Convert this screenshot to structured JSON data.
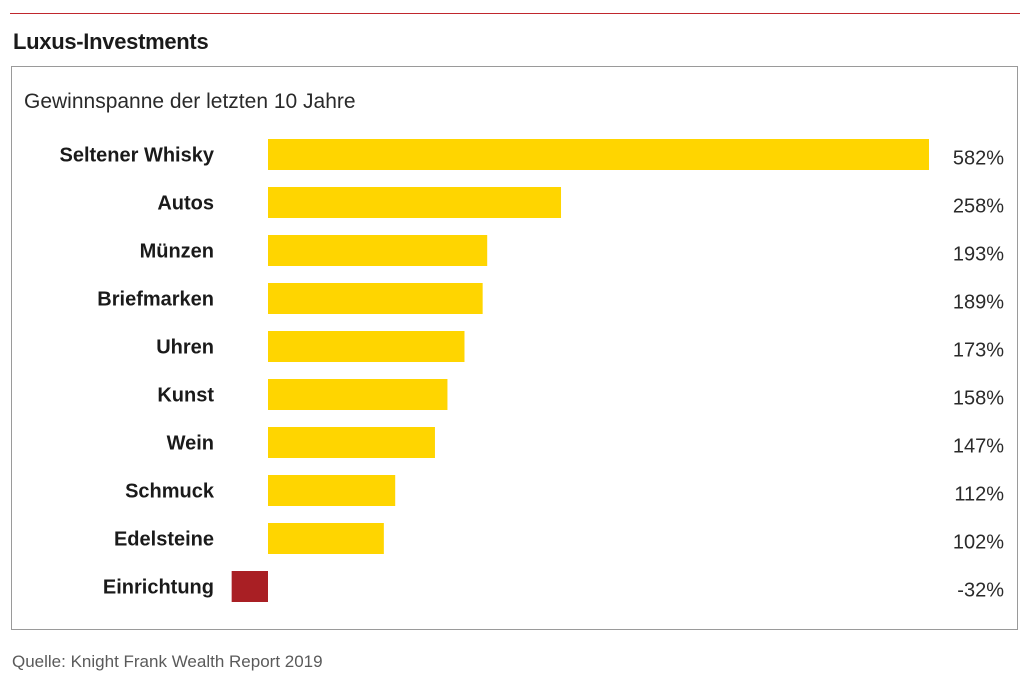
{
  "header": {
    "title": "Luxus-Investments"
  },
  "chart_data": {
    "type": "bar",
    "orientation": "horizontal",
    "title": "Gewinnspanne der letzten 10 Jahre",
    "categories": [
      "Seltener Whisky",
      "Autos",
      "Münzen",
      "Briefmarken",
      "Uhren",
      "Kunst",
      "Wein",
      "Schmuck",
      "Edelsteine",
      "Einrichtung"
    ],
    "values": [
      582,
      258,
      193,
      189,
      173,
      158,
      147,
      112,
      102,
      -32
    ],
    "value_labels": [
      "582%",
      "258%",
      "193%",
      "189%",
      "173%",
      "158%",
      "147%",
      "112%",
      "102%",
      "-32%"
    ],
    "xlim": [
      -32,
      582
    ],
    "grid": false,
    "colors": {
      "positive": "#FFD500",
      "negative": "#A91F24"
    }
  },
  "footer": {
    "source": "Quelle: Knight Frank Wealth Report 2019"
  }
}
